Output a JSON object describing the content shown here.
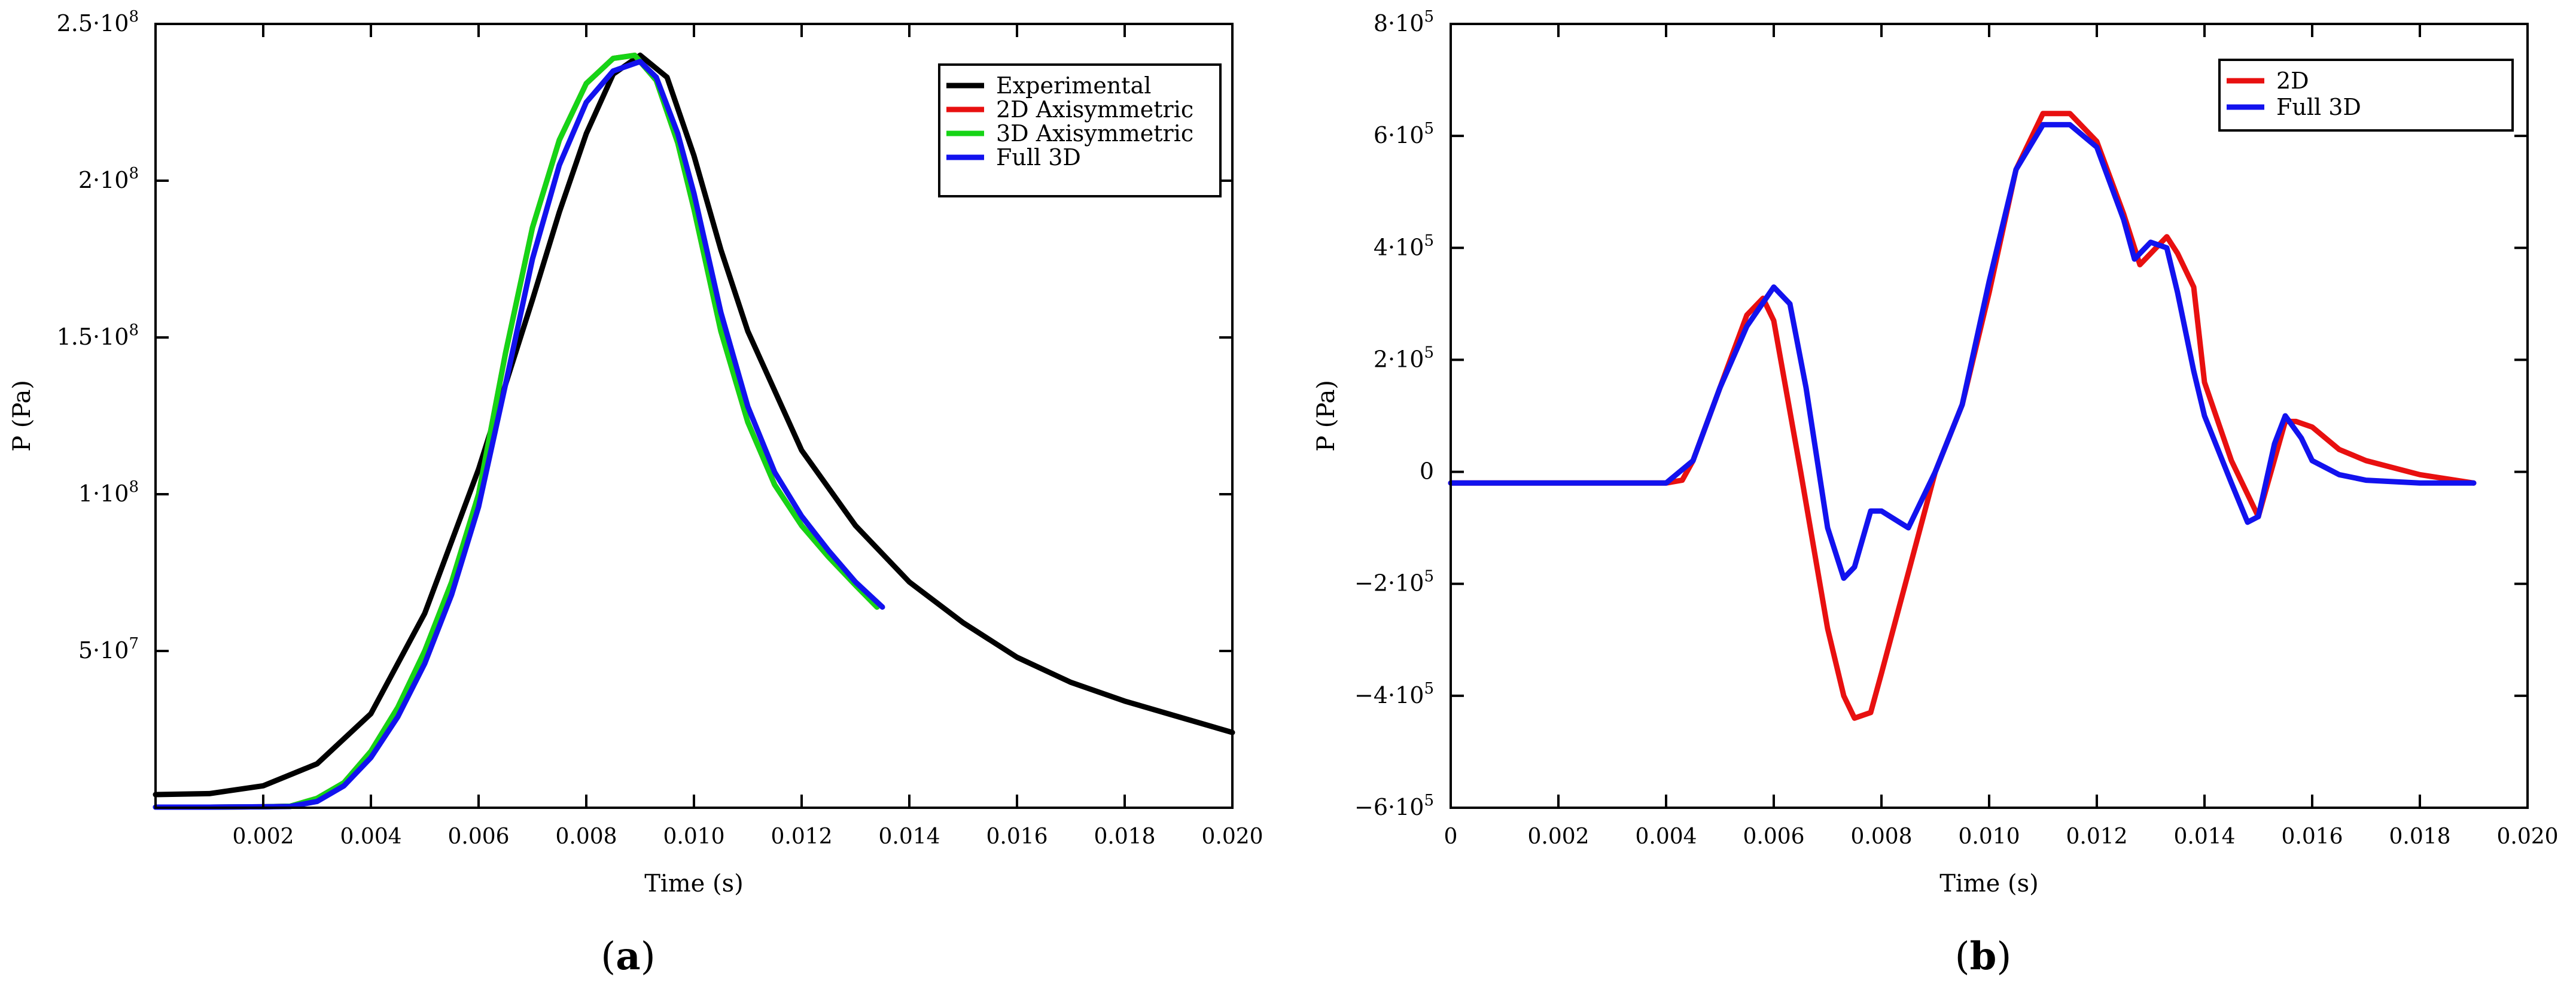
{
  "colors": {
    "experimental": "#000000",
    "red": "#e81010",
    "green": "#16d416",
    "blue": "#1212ee",
    "axis": "#000000"
  },
  "chart_data": [
    {
      "id": "a",
      "type": "line",
      "panel_label": {
        "open": "(",
        "letter": "a",
        "close": ")"
      },
      "xlabel": "Time (s)",
      "ylabel": "P (Pa)",
      "xlim": [
        0,
        0.02
      ],
      "ylim": [
        0,
        250000000
      ],
      "xticks": [
        {
          "v": 0.002,
          "label": "0.002"
        },
        {
          "v": 0.004,
          "label": "0.004"
        },
        {
          "v": 0.006,
          "label": "0.006"
        },
        {
          "v": 0.008,
          "label": "0.008"
        },
        {
          "v": 0.01,
          "label": "0.010"
        },
        {
          "v": 0.012,
          "label": "0.012"
        },
        {
          "v": 0.014,
          "label": "0.014"
        },
        {
          "v": 0.016,
          "label": "0.016"
        },
        {
          "v": 0.018,
          "label": "0.018"
        },
        {
          "v": 0.02,
          "label": "0.020"
        }
      ],
      "yticks": [
        {
          "v": 50000000,
          "label": "5·10",
          "exp": "7"
        },
        {
          "v": 100000000,
          "label": "1·10",
          "exp": "8"
        },
        {
          "v": 150000000,
          "label": "1.5·10",
          "exp": "8"
        },
        {
          "v": 200000000,
          "label": "2·10",
          "exp": "8"
        },
        {
          "v": 250000000,
          "label": "2.5·10",
          "exp": "8"
        }
      ],
      "legend": {
        "position": "top-right",
        "entries": [
          {
            "label": "Experimental",
            "color": "#000000"
          },
          {
            "label": "2D Axisymmetric",
            "color": "#e81010"
          },
          {
            "label": "3D Axisymmetric",
            "color": "#16d416"
          },
          {
            "label": "Full 3D",
            "color": "#1212ee"
          }
        ]
      },
      "series": [
        {
          "name": "Experimental",
          "color": "#000000",
          "points": [
            [
              0,
              4200000
            ],
            [
              0.001,
              4500000
            ],
            [
              0.002,
              7000000
            ],
            [
              0.003,
              14000000
            ],
            [
              0.004,
              30000000
            ],
            [
              0.005,
              62000000
            ],
            [
              0.006,
              108000000
            ],
            [
              0.0065,
              135000000
            ],
            [
              0.007,
              162000000
            ],
            [
              0.0075,
              190000000
            ],
            [
              0.008,
              215000000
            ],
            [
              0.0085,
              234000000
            ],
            [
              0.009,
              240000000
            ],
            [
              0.0095,
              233000000
            ],
            [
              0.01,
              208000000
            ],
            [
              0.0105,
              178000000
            ],
            [
              0.011,
              152000000
            ],
            [
              0.012,
              114000000
            ],
            [
              0.013,
              90000000
            ],
            [
              0.014,
              72000000
            ],
            [
              0.015,
              59000000
            ],
            [
              0.016,
              48000000
            ],
            [
              0.017,
              40000000
            ],
            [
              0.018,
              34000000
            ],
            [
              0.019,
              29000000
            ],
            [
              0.02,
              24000000
            ]
          ]
        },
        {
          "name": "2D Axisymmetric",
          "color": "#e81010",
          "points": [
            [
              0,
              200000
            ],
            [
              0.001,
              200000
            ],
            [
              0.002,
              300000
            ],
            [
              0.0025,
              500000
            ],
            [
              0.003,
              3000000
            ],
            [
              0.0035,
              8000000
            ],
            [
              0.004,
              18000000
            ],
            [
              0.0045,
              32000000
            ],
            [
              0.005,
              50000000
            ],
            [
              0.0055,
              72000000
            ],
            [
              0.006,
              100000000
            ],
            [
              0.0065,
              145000000
            ],
            [
              0.007,
              185000000
            ],
            [
              0.0075,
              213000000
            ],
            [
              0.008,
              231000000
            ],
            [
              0.0085,
              239000000
            ],
            [
              0.0089,
              240000000
            ],
            [
              0.0093,
              232000000
            ],
            [
              0.0097,
              212000000
            ],
            [
              0.01,
              191000000
            ],
            [
              0.0105,
              152000000
            ],
            [
              0.011,
              123000000
            ],
            [
              0.0115,
              103000000
            ],
            [
              0.012,
              90000000
            ],
            [
              0.0125,
              80000000
            ],
            [
              0.013,
              71000000
            ],
            [
              0.0134,
              64000000
            ]
          ]
        },
        {
          "name": "3D Axisymmetric",
          "color": "#16d416",
          "points": [
            [
              0,
              200000
            ],
            [
              0.001,
              200000
            ],
            [
              0.002,
              300000
            ],
            [
              0.0025,
              500000
            ],
            [
              0.003,
              3000000
            ],
            [
              0.0035,
              8000000
            ],
            [
              0.004,
              18000000
            ],
            [
              0.0045,
              32000000
            ],
            [
              0.005,
              50000000
            ],
            [
              0.0055,
              72000000
            ],
            [
              0.006,
              100000000
            ],
            [
              0.0065,
              145000000
            ],
            [
              0.007,
              185000000
            ],
            [
              0.0075,
              213000000
            ],
            [
              0.008,
              231000000
            ],
            [
              0.0085,
              239000000
            ],
            [
              0.0089,
              240000000
            ],
            [
              0.0093,
              232000000
            ],
            [
              0.0097,
              212000000
            ],
            [
              0.01,
              191000000
            ],
            [
              0.0105,
              152000000
            ],
            [
              0.011,
              123000000
            ],
            [
              0.0115,
              103000000
            ],
            [
              0.012,
              90000000
            ],
            [
              0.0125,
              80000000
            ],
            [
              0.013,
              71000000
            ],
            [
              0.0134,
              64000000
            ]
          ]
        },
        {
          "name": "Full 3D",
          "color": "#1212ee",
          "points": [
            [
              0,
              200000
            ],
            [
              0.001,
              200000
            ],
            [
              0.002,
              300000
            ],
            [
              0.0025,
              400000
            ],
            [
              0.003,
              2000000
            ],
            [
              0.0035,
              7000000
            ],
            [
              0.004,
              16000000
            ],
            [
              0.0045,
              29000000
            ],
            [
              0.005,
              46000000
            ],
            [
              0.0055,
              68000000
            ],
            [
              0.006,
              96000000
            ],
            [
              0.0065,
              135000000
            ],
            [
              0.007,
              175000000
            ],
            [
              0.0075,
              205000000
            ],
            [
              0.008,
              225000000
            ],
            [
              0.0085,
              235000000
            ],
            [
              0.009,
              238000000
            ],
            [
              0.0093,
              233000000
            ],
            [
              0.0097,
              215000000
            ],
            [
              0.01,
              196000000
            ],
            [
              0.0105,
              158000000
            ],
            [
              0.011,
              128000000
            ],
            [
              0.0115,
              107000000
            ],
            [
              0.012,
              93000000
            ],
            [
              0.0125,
              82000000
            ],
            [
              0.013,
              72000000
            ],
            [
              0.0135,
              64000000
            ]
          ]
        }
      ]
    },
    {
      "id": "b",
      "type": "line",
      "panel_label": {
        "open": "(",
        "letter": "b",
        "close": ")"
      },
      "xlabel": "Time (s)",
      "ylabel": "P (Pa)",
      "xlim": [
        0,
        0.02
      ],
      "ylim": [
        -600000,
        800000
      ],
      "xticks": [
        {
          "v": 0,
          "label": "0"
        },
        {
          "v": 0.002,
          "label": "0.002"
        },
        {
          "v": 0.004,
          "label": "0.004"
        },
        {
          "v": 0.006,
          "label": "0.006"
        },
        {
          "v": 0.008,
          "label": "0.008"
        },
        {
          "v": 0.01,
          "label": "0.010"
        },
        {
          "v": 0.012,
          "label": "0.012"
        },
        {
          "v": 0.014,
          "label": "0.014"
        },
        {
          "v": 0.016,
          "label": "0.016"
        },
        {
          "v": 0.018,
          "label": "0.018"
        },
        {
          "v": 0.02,
          "label": "0.020"
        }
      ],
      "yticks": [
        {
          "v": -600000,
          "label": "−6·10",
          "exp": "5"
        },
        {
          "v": -400000,
          "label": "−4·10",
          "exp": "5"
        },
        {
          "v": -200000,
          "label": "−2·10",
          "exp": "5"
        },
        {
          "v": 0,
          "label": "0",
          "exp": ""
        },
        {
          "v": 200000,
          "label": "2·10",
          "exp": "5"
        },
        {
          "v": 400000,
          "label": "4·10",
          "exp": "5"
        },
        {
          "v": 600000,
          "label": "6·10",
          "exp": "5"
        },
        {
          "v": 800000,
          "label": "8·10",
          "exp": "5"
        }
      ],
      "legend": {
        "position": "top-right",
        "entries": [
          {
            "label": "2D",
            "color": "#e81010"
          },
          {
            "label": "Full 3D",
            "color": "#1212ee"
          }
        ]
      },
      "series": [
        {
          "name": "2D",
          "color": "#e81010",
          "points": [
            [
              0,
              -20000
            ],
            [
              0.001,
              -20000
            ],
            [
              0.002,
              -20000
            ],
            [
              0.003,
              -20000
            ],
            [
              0.004,
              -20000
            ],
            [
              0.0043,
              -15000
            ],
            [
              0.0045,
              20000
            ],
            [
              0.005,
              150000
            ],
            [
              0.0055,
              280000
            ],
            [
              0.0058,
              310000
            ],
            [
              0.006,
              270000
            ],
            [
              0.0065,
              0
            ],
            [
              0.007,
              -280000
            ],
            [
              0.0073,
              -400000
            ],
            [
              0.0075,
              -440000
            ],
            [
              0.0078,
              -430000
            ],
            [
              0.008,
              -360000
            ],
            [
              0.0085,
              -180000
            ],
            [
              0.009,
              0
            ],
            [
              0.0095,
              120000
            ],
            [
              0.01,
              320000
            ],
            [
              0.0105,
              540000
            ],
            [
              0.011,
              640000
            ],
            [
              0.0115,
              640000
            ],
            [
              0.012,
              590000
            ],
            [
              0.0125,
              460000
            ],
            [
              0.0128,
              370000
            ],
            [
              0.013,
              390000
            ],
            [
              0.0133,
              420000
            ],
            [
              0.0135,
              390000
            ],
            [
              0.0138,
              330000
            ],
            [
              0.014,
              160000
            ],
            [
              0.0145,
              20000
            ],
            [
              0.015,
              -80000
            ],
            [
              0.0155,
              90000
            ],
            [
              0.0157,
              90000
            ],
            [
              0.016,
              80000
            ],
            [
              0.0165,
              40000
            ],
            [
              0.017,
              20000
            ],
            [
              0.018,
              -5000
            ],
            [
              0.019,
              -20000
            ]
          ]
        },
        {
          "name": "Full 3D",
          "color": "#1212ee",
          "points": [
            [
              0,
              -20000
            ],
            [
              0.001,
              -20000
            ],
            [
              0.002,
              -20000
            ],
            [
              0.003,
              -20000
            ],
            [
              0.004,
              -20000
            ],
            [
              0.0045,
              20000
            ],
            [
              0.005,
              150000
            ],
            [
              0.0055,
              260000
            ],
            [
              0.006,
              330000
            ],
            [
              0.0063,
              300000
            ],
            [
              0.0066,
              150000
            ],
            [
              0.007,
              -100000
            ],
            [
              0.0073,
              -190000
            ],
            [
              0.0075,
              -170000
            ],
            [
              0.0078,
              -70000
            ],
            [
              0.008,
              -70000
            ],
            [
              0.0085,
              -100000
            ],
            [
              0.009,
              0
            ],
            [
              0.0095,
              120000
            ],
            [
              0.01,
              340000
            ],
            [
              0.0105,
              540000
            ],
            [
              0.011,
              620000
            ],
            [
              0.0115,
              620000
            ],
            [
              0.012,
              580000
            ],
            [
              0.0125,
              450000
            ],
            [
              0.0127,
              380000
            ],
            [
              0.013,
              410000
            ],
            [
              0.0133,
              400000
            ],
            [
              0.0135,
              320000
            ],
            [
              0.0138,
              180000
            ],
            [
              0.014,
              100000
            ],
            [
              0.0145,
              -20000
            ],
            [
              0.0148,
              -90000
            ],
            [
              0.015,
              -80000
            ],
            [
              0.0153,
              50000
            ],
            [
              0.0155,
              100000
            ],
            [
              0.0158,
              60000
            ],
            [
              0.016,
              20000
            ],
            [
              0.0165,
              -5000
            ],
            [
              0.017,
              -15000
            ],
            [
              0.018,
              -20000
            ],
            [
              0.019,
              -20000
            ]
          ]
        }
      ]
    }
  ]
}
